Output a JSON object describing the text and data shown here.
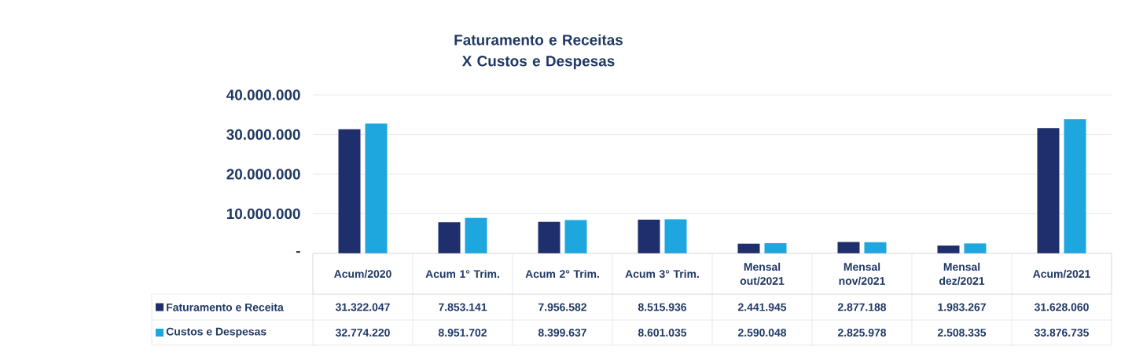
{
  "chart_data": {
    "type": "bar",
    "title": "Faturamento e Receitas X Custos e Despesas",
    "categories": [
      "Acum/2020",
      "Acum 1° Trim.",
      "Acum 2° Trim.",
      "Acum 3° Trim.",
      "Mensal out/2021",
      "Mensal nov/2021",
      "Mensal dez/2021",
      "Acum/2021"
    ],
    "series": [
      {
        "name": "Faturamento e Receita",
        "color": "#1f2f6e",
        "values": [
          31322047,
          7853141,
          7956582,
          8515936,
          2441945,
          2877188,
          1983267,
          31628060
        ],
        "value_labels": [
          "31.322.047",
          "7.853.141",
          "7.956.582",
          "8.515.936",
          "2.441.945",
          "2.877.188",
          "1.983.267",
          "31.628.060"
        ]
      },
      {
        "name": "Custos e Despesas",
        "color": "#1ea6df",
        "values": [
          32774220,
          8951702,
          8399637,
          8601035,
          2590048,
          2825978,
          2508335,
          33876735
        ],
        "value_labels": [
          "32.774.220",
          "8.951.702",
          "8.399.637",
          "8.601.035",
          "2.590.048",
          "2.825.978",
          "2.508.335",
          "33.876.735"
        ]
      }
    ],
    "ylim": [
      0,
      40000000
    ],
    "yticks": [
      {
        "value": 0,
        "label": "-"
      },
      {
        "value": 10000000,
        "label": "10.000.000"
      },
      {
        "value": 20000000,
        "label": "20.000.000"
      },
      {
        "value": 30000000,
        "label": "30.000.000"
      },
      {
        "value": 40000000,
        "label": "40.000.000"
      }
    ],
    "grid": "y",
    "legend": "bottom left"
  }
}
